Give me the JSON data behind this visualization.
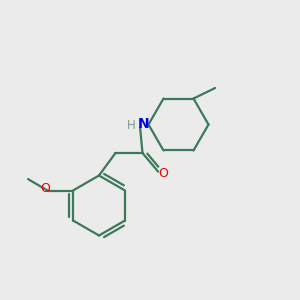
{
  "background_color": "#ebebeb",
  "bond_color": "#3a7a5a",
  "N_color": "#0000ee",
  "O_color": "#ee0000",
  "H_color": "#7a9a8a",
  "line_width": 1.6,
  "figsize": [
    3.0,
    3.0
  ],
  "dpi": 100,
  "xlim": [
    0,
    10
  ],
  "ylim": [
    0,
    10
  ]
}
